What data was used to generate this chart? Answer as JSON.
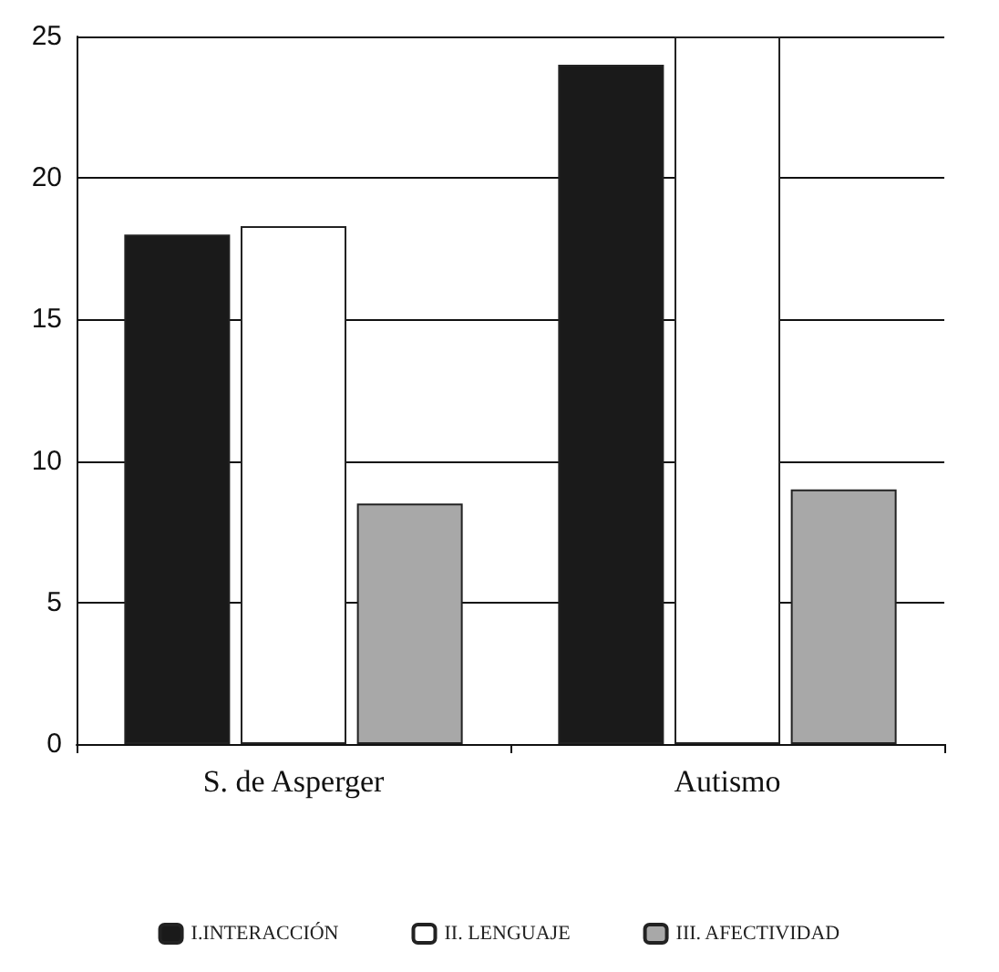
{
  "chart_data": {
    "type": "bar",
    "categories": [
      "S. de Asperger",
      "Autismo"
    ],
    "series": [
      {
        "name": "I.INTERACCIÓN",
        "color": "#1a1a1a",
        "values": [
          18,
          24
        ]
      },
      {
        "name": "II. LENGUAJE",
        "color": "#ffffff",
        "values": [
          18.3,
          25
        ]
      },
      {
        "name": "III. AFECTIVIDAD",
        "color": "#a8a8a8",
        "values": [
          8.5,
          9
        ]
      }
    ],
    "ylim": [
      0,
      25
    ],
    "yticks": [
      0,
      5,
      10,
      15,
      20,
      25
    ],
    "grid": "y",
    "legend": "bottom"
  }
}
